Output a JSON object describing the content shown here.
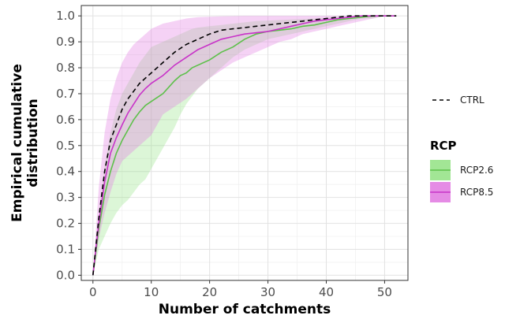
{
  "chart_data": {
    "type": "line",
    "title": "",
    "xlabel": "Number of catchments",
    "ylabel_line1": "Empirical cumulative",
    "ylabel_line2": "distribution",
    "xlim": [
      -2,
      54
    ],
    "ylim": [
      -0.02,
      1.04
    ],
    "x_ticks": [
      0,
      10,
      20,
      30,
      40,
      50
    ],
    "x_tick_labels": [
      "0",
      "10",
      "20",
      "30",
      "40",
      "50"
    ],
    "y_ticks": [
      0.0,
      0.1,
      0.2,
      0.3,
      0.4,
      0.5,
      0.6,
      0.7,
      0.8,
      0.9,
      1.0
    ],
    "y_tick_labels": [
      "0.0",
      "0.1",
      "0.2",
      "0.3",
      "0.4",
      "0.5",
      "0.6",
      "0.7",
      "0.8",
      "0.9",
      "1.0"
    ],
    "grid": true,
    "legend_position": "right",
    "legend_title": "RCP",
    "ctrl": {
      "name": "CTRL",
      "color": "#000000",
      "x": [
        0,
        1,
        2,
        3,
        4,
        5,
        6,
        7,
        8,
        9,
        10,
        12,
        14,
        16,
        18,
        20,
        22,
        24,
        26,
        28,
        30,
        32,
        34,
        36,
        38,
        40,
        42,
        44,
        46,
        48,
        50,
        52
      ],
      "y": [
        0.0,
        0.22,
        0.4,
        0.52,
        0.58,
        0.64,
        0.68,
        0.71,
        0.74,
        0.76,
        0.78,
        0.82,
        0.86,
        0.89,
        0.91,
        0.93,
        0.945,
        0.95,
        0.955,
        0.96,
        0.965,
        0.97,
        0.975,
        0.98,
        0.985,
        0.99,
        0.995,
        1.0,
        1.0,
        1.0,
        1.0,
        1.0
      ]
    },
    "series": [
      {
        "name": "RCP2.6",
        "line_color": "#5dc04a",
        "fill_color": "#8be07a",
        "fill_opacity": 0.3,
        "x": [
          0,
          1,
          2,
          3,
          4,
          5,
          6,
          7,
          8,
          9,
          10,
          12,
          14,
          15,
          16,
          17,
          18,
          20,
          22,
          24,
          26,
          28,
          30,
          32,
          34,
          36,
          38,
          40,
          42,
          44,
          46,
          48,
          50,
          52
        ],
        "y": [
          0.0,
          0.18,
          0.31,
          0.4,
          0.47,
          0.52,
          0.56,
          0.6,
          0.63,
          0.655,
          0.67,
          0.7,
          0.75,
          0.77,
          0.78,
          0.8,
          0.81,
          0.83,
          0.86,
          0.88,
          0.91,
          0.93,
          0.94,
          0.945,
          0.95,
          0.96,
          0.965,
          0.975,
          0.985,
          0.99,
          0.995,
          1.0,
          1.0,
          1.0
        ],
        "lower": [
          0.0,
          0.1,
          0.15,
          0.2,
          0.24,
          0.27,
          0.29,
          0.32,
          0.35,
          0.37,
          0.41,
          0.49,
          0.57,
          0.62,
          0.66,
          0.69,
          0.72,
          0.76,
          0.8,
          0.84,
          0.87,
          0.89,
          0.91,
          0.92,
          0.93,
          0.94,
          0.95,
          0.96,
          0.97,
          0.98,
          0.99,
          0.99,
          1.0,
          1.0
        ],
        "upper": [
          0.0,
          0.23,
          0.42,
          0.55,
          0.64,
          0.7,
          0.74,
          0.78,
          0.82,
          0.85,
          0.88,
          0.9,
          0.92,
          0.93,
          0.94,
          0.95,
          0.955,
          0.96,
          0.965,
          0.97,
          0.975,
          0.98,
          0.982,
          0.984,
          0.986,
          0.988,
          0.99,
          0.992,
          0.995,
          0.998,
          1.0,
          1.0,
          1.0,
          1.0
        ]
      },
      {
        "name": "RCP8.5",
        "line_color": "#c832c8",
        "fill_color": "#e27ee2",
        "fill_opacity": 0.35,
        "x": [
          0,
          1,
          2,
          3,
          4,
          5,
          6,
          7,
          8,
          9,
          10,
          12,
          14,
          16,
          18,
          20,
          22,
          24,
          26,
          28,
          30,
          32,
          34,
          36,
          38,
          40,
          42,
          44,
          46,
          48,
          50,
          52
        ],
        "y": [
          0.0,
          0.2,
          0.36,
          0.47,
          0.53,
          0.58,
          0.625,
          0.66,
          0.695,
          0.72,
          0.74,
          0.77,
          0.81,
          0.84,
          0.87,
          0.89,
          0.91,
          0.92,
          0.93,
          0.935,
          0.94,
          0.95,
          0.96,
          0.97,
          0.98,
          0.985,
          0.99,
          0.995,
          1.0,
          1.0,
          1.0,
          1.0
        ],
        "lower": [
          0.0,
          0.14,
          0.24,
          0.32,
          0.39,
          0.44,
          0.46,
          0.48,
          0.5,
          0.52,
          0.54,
          0.62,
          0.65,
          0.68,
          0.72,
          0.76,
          0.79,
          0.82,
          0.84,
          0.86,
          0.88,
          0.9,
          0.91,
          0.93,
          0.94,
          0.95,
          0.96,
          0.97,
          0.98,
          0.99,
          1.0,
          1.0
        ],
        "upper": [
          0.0,
          0.34,
          0.55,
          0.68,
          0.76,
          0.82,
          0.86,
          0.89,
          0.91,
          0.93,
          0.95,
          0.97,
          0.98,
          0.99,
          0.995,
          0.997,
          0.998,
          0.999,
          1.0,
          1.0,
          1.0,
          1.0,
          1.0,
          1.0,
          1.0,
          1.0,
          1.0,
          1.0,
          1.0,
          1.0,
          1.0,
          1.0
        ]
      }
    ]
  }
}
